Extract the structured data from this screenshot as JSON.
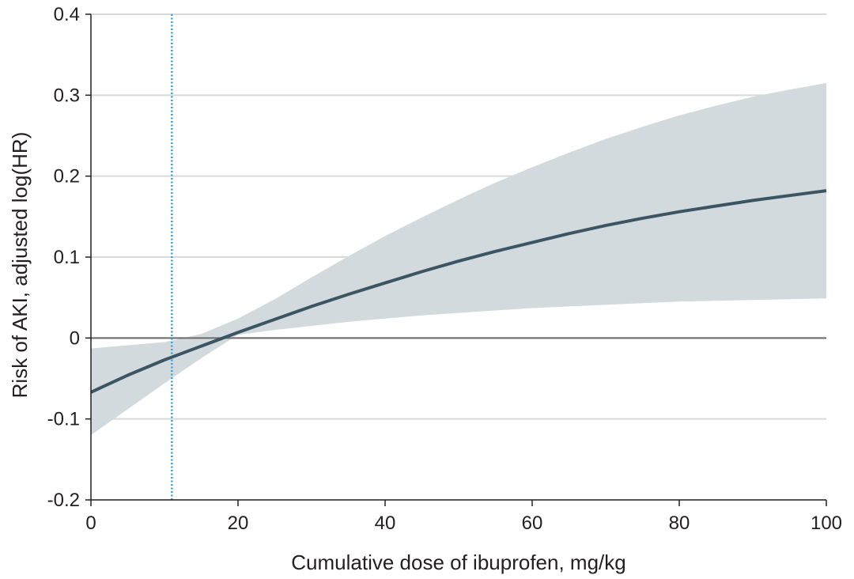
{
  "chart_data": {
    "type": "line",
    "title": "",
    "xlabel": "Cumulative dose of ibuprofen, mg/kg",
    "ylabel": "Risk of AKI, adjusted log(HR)",
    "xlim": [
      0,
      100
    ],
    "ylim": [
      -0.2,
      0.4
    ],
    "x_ticks": [
      0,
      20,
      40,
      60,
      80,
      100
    ],
    "x_tick_labels": [
      "0",
      "20",
      "40",
      "60",
      "80",
      "100"
    ],
    "y_ticks": [
      -0.2,
      -0.1,
      0,
      0.1,
      0.2,
      0.3,
      0.4
    ],
    "y_tick_labels": [
      "-0.2",
      "-0.1",
      "0",
      "0.1",
      "0.2",
      "0.3",
      "0.4"
    ],
    "grid": "horizontal",
    "reference_line_y": 0,
    "vertical_reference_x": 11,
    "series": [
      {
        "x": [
          0,
          5,
          10,
          15,
          20,
          25,
          30,
          35,
          40,
          45,
          50,
          55,
          60,
          65,
          70,
          75,
          80,
          85,
          90,
          95,
          100
        ],
        "y": [
          -0.067,
          -0.046,
          -0.027,
          -0.01,
          0.007,
          0.023,
          0.039,
          0.054,
          0.068,
          0.082,
          0.095,
          0.107,
          0.118,
          0.129,
          0.139,
          0.148,
          0.156,
          0.163,
          0.17,
          0.176,
          0.182
        ],
        "lower": [
          -0.12,
          -0.088,
          -0.056,
          -0.025,
          0.004,
          0.01,
          0.015,
          0.02,
          0.024,
          0.028,
          0.031,
          0.034,
          0.037,
          0.039,
          0.041,
          0.043,
          0.045,
          0.046,
          0.047,
          0.048,
          0.049
        ],
        "upper": [
          -0.013,
          -0.009,
          -0.005,
          0.005,
          0.024,
          0.048,
          0.075,
          0.101,
          0.126,
          0.149,
          0.171,
          0.192,
          0.211,
          0.229,
          0.246,
          0.261,
          0.275,
          0.287,
          0.298,
          0.307,
          0.315
        ]
      }
    ],
    "colors": {
      "line": "#3b5563",
      "band": "#d3dade",
      "grid": "#d9d9d9",
      "axis": "#231f20",
      "reference_vertical": "#3aa0d9"
    }
  }
}
